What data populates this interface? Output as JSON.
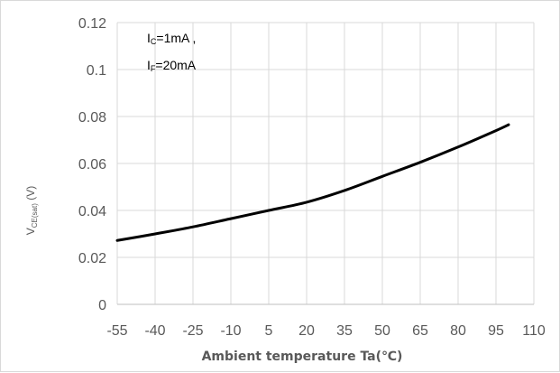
{
  "chart_data": {
    "type": "line",
    "xlabel": "Ambient temperature Ta(℃)",
    "ylabel": {
      "main": "V",
      "sub": "CE(sat)",
      "unit": " (V)"
    },
    "annotation": {
      "line1": {
        "main": "I",
        "sub": "C",
        "rest": "=1mA ,"
      },
      "line2": {
        "main": "I",
        "sub": "F",
        "rest": "=20mA"
      }
    },
    "xlim": [
      -55,
      110
    ],
    "ylim": [
      0,
      0.12
    ],
    "x_ticks": [
      -55,
      -40,
      -25,
      -10,
      5,
      20,
      35,
      50,
      65,
      80,
      95,
      110
    ],
    "x_tick_labels": [
      "-55",
      "-40",
      "-25",
      "-10",
      "5",
      "20",
      "35",
      "50",
      "65",
      "80",
      "95",
      "110"
    ],
    "y_ticks": [
      0,
      0.02,
      0.04,
      0.06,
      0.08,
      0.1,
      0.12
    ],
    "y_tick_labels": [
      "0",
      "0.02",
      "0.04",
      "0.06",
      "0.08",
      "0.1",
      "0.12"
    ],
    "grid": true,
    "series": [
      {
        "color": "#000000",
        "x": [
          -55,
          -40,
          -25,
          -10,
          5,
          20,
          35,
          50,
          65,
          80,
          95,
          100
        ],
        "y": [
          0.0272,
          0.03,
          0.033,
          0.0365,
          0.04,
          0.0435,
          0.0485,
          0.0545,
          0.0605,
          0.067,
          0.074,
          0.0765
        ]
      }
    ]
  }
}
